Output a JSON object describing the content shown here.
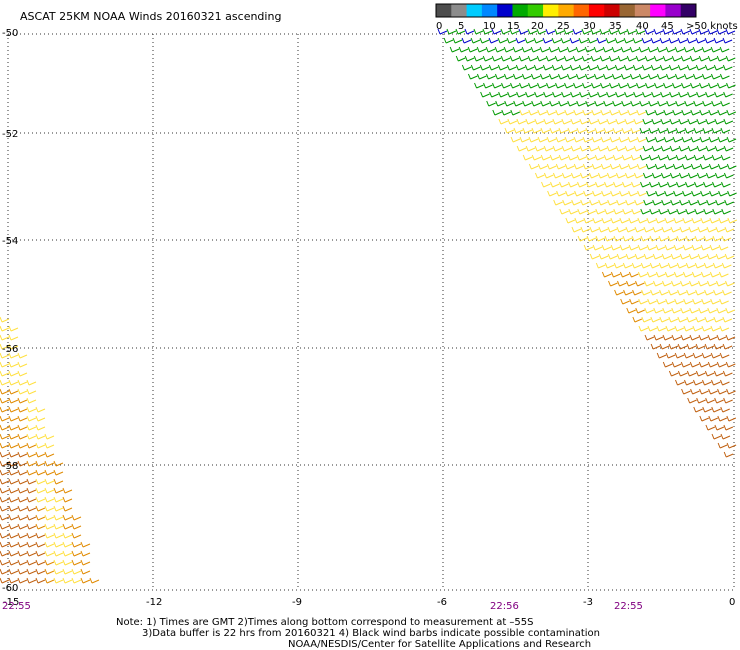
{
  "title": "ASCAT 25KM NOAA Winds 20160321 ascending",
  "legend": {
    "colors": [
      "#4d4d4d",
      "#8c8c8c",
      "#00ccff",
      "#0088ff",
      "#0000cc",
      "#00aa00",
      "#33cc00",
      "#ffee00",
      "#ffaa00",
      "#ff6600",
      "#ff0000",
      "#cc0000",
      "#996633",
      "#cc8866",
      "#ff00ff",
      "#9900cc",
      "#330066"
    ],
    "labels": [
      "0",
      "5",
      "10",
      "15",
      "20",
      "25",
      "30",
      "35",
      "40",
      "45",
      ">50 knots"
    ]
  },
  "axes": {
    "x_ticks": [
      "-15",
      "-12",
      "-9",
      "-6",
      "-3",
      "0"
    ],
    "y_ticks": [
      "-50",
      "-52",
      "-54",
      "-56",
      "-58",
      "-60"
    ]
  },
  "times": [
    "22:55",
    "22:56",
    "22:55"
  ],
  "notes": {
    "line1": "Note: 1) Times are GMT 2)Times along bottom correspond to measurement at –55S",
    "line2": "3)Data buffer is 22 hrs from 20160321 4) Black wind barbs indicate possible contamination",
    "line3": "NOAA/NESDIS/Center for Satellite Applications and Research"
  },
  "colors": {
    "green": "#009900",
    "blue": "#0000cc",
    "yellow": "#ffe040",
    "orange": "#e08a00",
    "brown": "#c06010"
  }
}
